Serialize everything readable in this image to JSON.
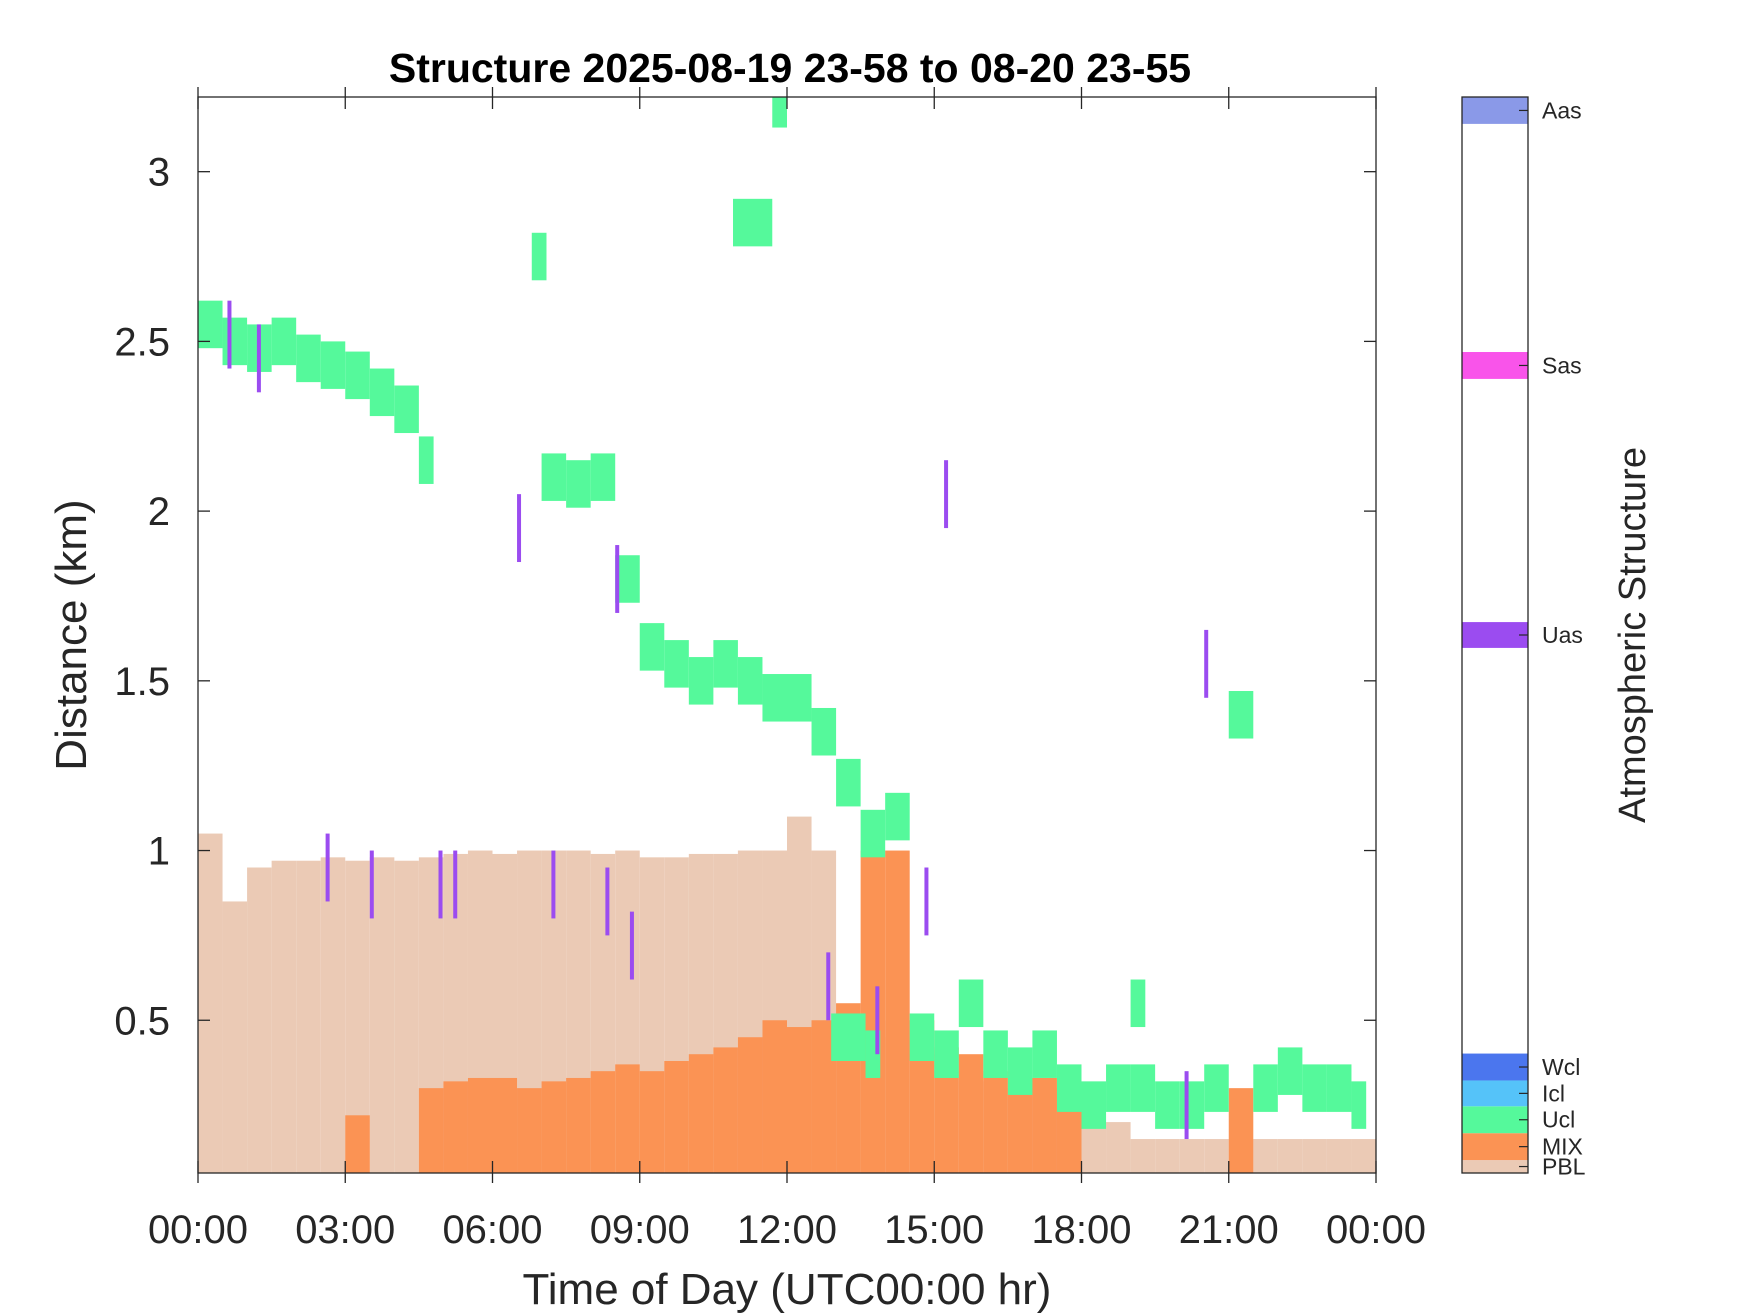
{
  "chart_data": {
    "type": "heatmap",
    "title": "Structure 2025-08-19 23-58 to 08-20 23-55",
    "xlabel": "Time of Day (UTC00:00 hr)",
    "ylabel": "Distance (km)",
    "xlim": [
      0,
      24
    ],
    "ylim": [
      0.05,
      3.22
    ],
    "x_ticks": [
      0,
      3,
      6,
      9,
      12,
      15,
      18,
      21,
      24
    ],
    "x_tick_labels": [
      "00:00",
      "03:00",
      "06:00",
      "09:00",
      "12:00",
      "15:00",
      "18:00",
      "21:00",
      "00:00"
    ],
    "y_ticks": [
      0.5,
      1,
      1.5,
      2,
      2.5,
      3
    ],
    "y_tick_labels": [
      "0.5",
      "1",
      "1.5",
      "2",
      "2.5",
      "3"
    ],
    "grid": false,
    "colorbar": {
      "label": "Atmospheric Structure",
      "classes": [
        {
          "name": "PBL",
          "color": "#ebcab5",
          "frac": [
            0.0,
            0.012
          ]
        },
        {
          "name": "MIX",
          "color": "#fb9354",
          "frac": [
            0.012,
            0.037
          ]
        },
        {
          "name": "Ucl",
          "color": "#55f99b",
          "frac": [
            0.037,
            0.062
          ]
        },
        {
          "name": "Icl",
          "color": "#55c3f9",
          "frac": [
            0.062,
            0.086
          ]
        },
        {
          "name": "Wcl",
          "color": "#4b76ee",
          "frac": [
            0.086,
            0.111
          ]
        },
        {
          "name": "Uas",
          "color": "#9b4cf0",
          "frac": [
            0.488,
            0.512
          ]
        },
        {
          "name": "Sas",
          "color": "#f954ea",
          "frac": [
            0.738,
            0.763
          ]
        },
        {
          "name": "Aas",
          "color": "#8a99e8",
          "frac": [
            0.975,
            1.0
          ]
        }
      ]
    },
    "series": [
      {
        "name": "PBL",
        "x": [
          0,
          0.5,
          1,
          1.5,
          2,
          2.5,
          3,
          3.5,
          4,
          4.5,
          5,
          5.5,
          6,
          6.5,
          7,
          7.5,
          8,
          8.5,
          9,
          9.5,
          10,
          10.5,
          11,
          11.5,
          12,
          12.5,
          13,
          13.5,
          14,
          14.5,
          15,
          15.5,
          16,
          16.5,
          17,
          17.5,
          18,
          18.5,
          19,
          19.5,
          20,
          20.5,
          21,
          21.5,
          22,
          22.5,
          23,
          23.5
        ],
        "y": [
          1.05,
          0.85,
          0.95,
          0.97,
          0.97,
          0.98,
          0.97,
          0.98,
          0.97,
          0.98,
          0.99,
          1.0,
          0.99,
          1.0,
          1.0,
          1.0,
          0.99,
          1.0,
          0.98,
          0.98,
          0.99,
          0.99,
          1.0,
          1.0,
          1.1,
          1.0,
          0.55,
          0.5,
          0.45,
          0.4,
          0.35,
          0.32,
          0.3,
          0.3,
          0.3,
          0.3,
          0.25,
          0.2,
          0.15,
          0.15,
          0.15,
          0.15,
          0.15,
          0.15,
          0.15,
          0.15,
          0.15,
          0.15
        ]
      },
      {
        "name": "MIX",
        "x": [
          0,
          0.5,
          1,
          1.5,
          2,
          2.5,
          3,
          3.5,
          4,
          4.5,
          5,
          5.5,
          6,
          6.5,
          7,
          7.5,
          8,
          8.5,
          9,
          9.5,
          10,
          10.5,
          11,
          11.5,
          12,
          12.5,
          13,
          13.5,
          14,
          14.5,
          15,
          15.5,
          16,
          16.5,
          17,
          17.5,
          18,
          18.5,
          19,
          19.5,
          20,
          20.5,
          21,
          21.5,
          22,
          22.5,
          23,
          23.5
        ],
        "y": [
          0,
          0,
          0,
          0,
          0,
          0,
          0.22,
          0,
          0,
          0.3,
          0.32,
          0.33,
          0.33,
          0.3,
          0.32,
          0.33,
          0.35,
          0.37,
          0.35,
          0.38,
          0.4,
          0.42,
          0.45,
          0.5,
          0.48,
          0.5,
          0.55,
          1.0,
          1.0,
          0.5,
          0.42,
          0.4,
          0.35,
          0.33,
          0.33,
          0.3,
          0,
          0,
          0,
          0,
          0,
          0,
          0.3,
          0,
          0,
          0,
          0,
          0
        ]
      },
      {
        "name": "Ucl",
        "x": [
          0,
          0.5,
          1,
          1.5,
          2,
          2.5,
          3,
          3.5,
          4,
          4.5,
          7,
          7.5,
          8,
          8.5,
          9,
          9.5,
          10,
          10.5,
          11,
          11.5,
          12,
          12.5,
          13,
          13.5,
          14,
          14.5,
          15,
          15.5,
          16,
          16.5,
          17,
          17.5,
          18,
          18.5,
          19,
          19.5,
          20,
          20.5,
          21,
          21.5,
          22,
          22.5,
          23,
          23.5
        ],
        "y": [
          2.55,
          2.5,
          2.48,
          2.5,
          2.45,
          2.43,
          2.4,
          2.35,
          2.3,
          2.15,
          2.1,
          2.08,
          2.1,
          1.8,
          1.6,
          1.55,
          1.5,
          1.55,
          1.5,
          1.45,
          1.45,
          1.35,
          1.2,
          1.05,
          1.1,
          0.45,
          0.4,
          0.55,
          0.4,
          0.35,
          0.4,
          0.3,
          0.25,
          0.3,
          0.3,
          0.25,
          0.25,
          0.3,
          1.4,
          0.3,
          0.35,
          0.3,
          0.3,
          0.25
        ]
      },
      {
        "name": "Ucl",
        "x": [
          6.8,
          10.9,
          11.7,
          12.9,
          13.6,
          19.0
        ],
        "y": [
          2.75,
          2.85,
          3.2,
          0.45,
          0.4,
          0.55
        ]
      },
      {
        "name": "Uas",
        "x": [
          0.6,
          1.2,
          2.6,
          3.5,
          4.9,
          5.2,
          6.5,
          7.2,
          8.3,
          8.5,
          8.8,
          12.8,
          13.8,
          14.8,
          15.2,
          20.1,
          20.5
        ],
        "y": [
          2.52,
          2.45,
          0.95,
          0.9,
          0.9,
          0.9,
          1.95,
          0.9,
          0.85,
          1.8,
          0.72,
          0.6,
          0.5,
          0.85,
          2.05,
          0.25,
          1.55
        ]
      }
    ]
  }
}
